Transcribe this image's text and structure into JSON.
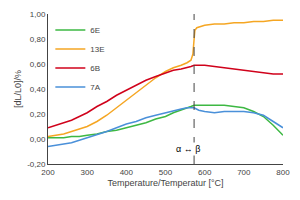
{
  "chart_data": {
    "type": "line",
    "xlabel": "Temperature/Temperatur [°C]",
    "ylabel": "[dL/L0]/%",
    "xlim": [
      200,
      800
    ],
    "ylim": [
      -0.2,
      1.0
    ],
    "xticks": [
      200,
      300,
      400,
      500,
      600,
      700,
      800
    ],
    "yticks": [
      {
        "value": -0.2,
        "label": "-0,20"
      },
      {
        "value": 0.0,
        "label": "0,00"
      },
      {
        "value": 0.2,
        "label": "0,20"
      },
      {
        "value": 0.4,
        "label": "0,40"
      },
      {
        "value": 0.6,
        "label": "0,60"
      },
      {
        "value": 0.8,
        "label": "0,80"
      },
      {
        "value": 1.0,
        "label": "1,00"
      }
    ],
    "grid": false,
    "legend": "upper left",
    "vlines": [
      {
        "x": 573,
        "color": "#444444",
        "line_style": "dashed"
      }
    ],
    "annotations": [
      {
        "text": "α ↔ β",
        "x": 557,
        "y": -0.08
      }
    ],
    "series": [
      {
        "name": "6E",
        "color": "#3db843",
        "x": [
          200,
          220,
          240,
          260,
          280,
          300,
          325,
          350,
          375,
          400,
          425,
          450,
          475,
          500,
          520,
          540,
          555,
          565,
          573,
          585,
          600,
          625,
          650,
          675,
          700,
          725,
          750,
          775,
          800
        ],
        "values": [
          0.01,
          0.01,
          0.01,
          0.02,
          0.02,
          0.03,
          0.04,
          0.06,
          0.07,
          0.09,
          0.11,
          0.13,
          0.16,
          0.18,
          0.21,
          0.23,
          0.25,
          0.26,
          0.27,
          0.27,
          0.27,
          0.27,
          0.27,
          0.26,
          0.25,
          0.22,
          0.18,
          0.11,
          0.03
        ]
      },
      {
        "name": "13E",
        "color": "#f5a623",
        "x": [
          200,
          220,
          240,
          260,
          280,
          300,
          325,
          350,
          375,
          400,
          425,
          450,
          475,
          500,
          520,
          540,
          555,
          565,
          570,
          572,
          573,
          575,
          580,
          590,
          600,
          625,
          650,
          675,
          700,
          725,
          750,
          775,
          800
        ],
        "values": [
          0.02,
          0.03,
          0.04,
          0.06,
          0.08,
          0.1,
          0.14,
          0.19,
          0.25,
          0.31,
          0.37,
          0.43,
          0.49,
          0.54,
          0.57,
          0.59,
          0.61,
          0.63,
          0.68,
          0.76,
          0.84,
          0.87,
          0.89,
          0.9,
          0.91,
          0.92,
          0.92,
          0.93,
          0.93,
          0.94,
          0.94,
          0.95,
          0.95
        ]
      },
      {
        "name": "6B",
        "color": "#d0021b",
        "x": [
          200,
          220,
          240,
          260,
          280,
          300,
          325,
          350,
          375,
          400,
          425,
          450,
          475,
          500,
          520,
          540,
          555,
          565,
          573,
          585,
          600,
          625,
          650,
          675,
          700,
          725,
          750,
          775,
          800
        ],
        "values": [
          0.09,
          0.11,
          0.13,
          0.15,
          0.18,
          0.21,
          0.26,
          0.3,
          0.35,
          0.39,
          0.43,
          0.47,
          0.5,
          0.53,
          0.55,
          0.56,
          0.57,
          0.58,
          0.59,
          0.59,
          0.59,
          0.58,
          0.57,
          0.56,
          0.55,
          0.54,
          0.53,
          0.52,
          0.52
        ]
      },
      {
        "name": "7A",
        "color": "#4a90d9",
        "x": [
          200,
          220,
          240,
          260,
          280,
          300,
          325,
          350,
          375,
          400,
          425,
          450,
          475,
          500,
          520,
          540,
          555,
          565,
          573,
          585,
          600,
          625,
          650,
          675,
          700,
          725,
          750,
          775,
          800
        ],
        "values": [
          -0.06,
          -0.05,
          -0.04,
          -0.03,
          -0.01,
          0.01,
          0.03,
          0.06,
          0.09,
          0.12,
          0.14,
          0.17,
          0.19,
          0.21,
          0.23,
          0.24,
          0.25,
          0.25,
          0.25,
          0.23,
          0.22,
          0.21,
          0.22,
          0.22,
          0.22,
          0.21,
          0.19,
          0.14,
          0.09
        ]
      }
    ]
  }
}
